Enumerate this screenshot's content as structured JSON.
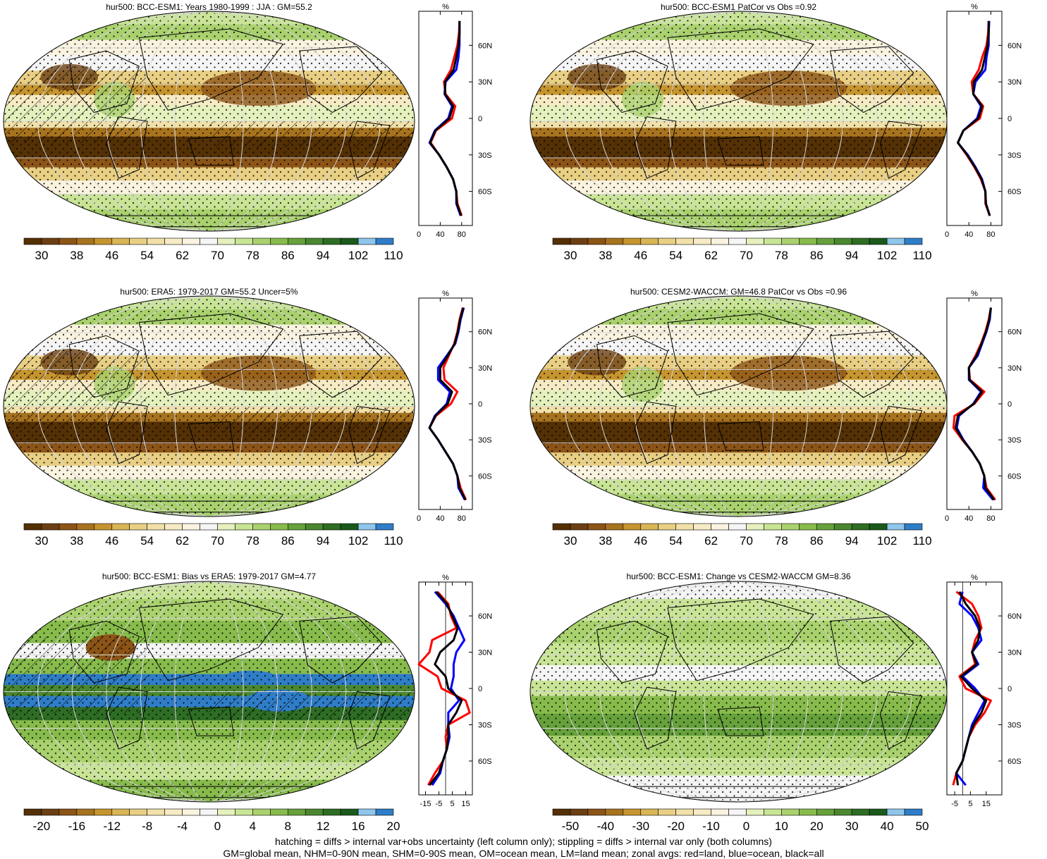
{
  "colors": {
    "landLine": "#ff0000",
    "oceanLine": "#0000ff",
    "allLine": "#000000"
  },
  "palettes": {
    "absolute": [
      "#543005",
      "#6b3f12",
      "#8c5416",
      "#a8731e",
      "#c6952f",
      "#d9b554",
      "#e8cf84",
      "#f1e0a8",
      "#f6ebc4",
      "#faf3df",
      "#f5f5f5",
      "#e4f1bd",
      "#c8e495",
      "#a9d16d",
      "#87bb4c",
      "#66a13b",
      "#4a872f",
      "#2e6d24",
      "#1a5a1c",
      "#8ec6ec",
      "#2f7dc8"
    ],
    "bias": [
      "#543005",
      "#6b3f12",
      "#8c5416",
      "#a8731e",
      "#c6952f",
      "#d9b554",
      "#e8cf84",
      "#f1e0a8",
      "#f6ebc4",
      "#faf3df",
      "#f5f5f5",
      "#e4f1bd",
      "#c8e495",
      "#a9d16d",
      "#87bb4c",
      "#66a13b",
      "#4a872f",
      "#2e6d24",
      "#1a5a1c",
      "#8ec6ec",
      "#2f7dc8"
    ]
  },
  "colorbars": {
    "absolute": [
      "30",
      "38",
      "46",
      "54",
      "62",
      "70",
      "78",
      "86",
      "94",
      "102",
      "110"
    ],
    "bias": [
      "-20",
      "-16",
      "-12",
      "-8",
      "-4",
      "0",
      "4",
      "8",
      "12",
      "16",
      "20"
    ],
    "change": [
      "-50",
      "-40",
      "-30",
      "-20",
      "-10",
      "0",
      "10",
      "20",
      "30",
      "40",
      "50"
    ]
  },
  "panels": [
    {
      "id": "p1",
      "title": "hur500: BCC-ESM1: Years 1980-1999 : JJA : GM=55.2",
      "palette": "absolute",
      "bar": "absolute",
      "hatch": true
    },
    {
      "id": "p2",
      "title": "hur500: BCC-ESM1 PatCor vs Obs =0.92",
      "palette": "absolute",
      "bar": "absolute",
      "hatch": false
    },
    {
      "id": "p3",
      "title": "hur500: ERA5: 1979-2017 GM=55.2 Uncer=5%",
      "palette": "absolute",
      "bar": "absolute",
      "hatch": true
    },
    {
      "id": "p4",
      "title": "hur500: CESM2-WACCM: GM=46.8 PatCor vs Obs =0.96",
      "palette": "absolute",
      "bar": "absolute",
      "hatch": false
    },
    {
      "id": "p5",
      "title": "hur500: BCC-ESM1: Bias vs ERA5: 1979-2017 GM=4.77",
      "palette": "bias",
      "bar": "bias",
      "hatch": true
    },
    {
      "id": "p6",
      "title": "hur500: BCC-ESM1: Change vs CESM2-WACCM GM=8.36",
      "palette": "bias",
      "bar": "change",
      "hatch": false
    }
  ],
  "zonal": {
    "unit": "%",
    "lat_labels": [
      "60N",
      "30N",
      "0",
      "30S",
      "60S"
    ],
    "absolute_xticks": [
      "0",
      "40",
      "80"
    ],
    "bias_xticks": [
      "-15",
      "-5",
      "5",
      "15"
    ],
    "change_xticks": [
      "-5",
      "5",
      "15"
    ]
  },
  "chart_data": [
    {
      "type": "line",
      "title": "hur500: BCC-ESM1: Years 1980-1999 : JJA : GM=55.2 (zonal mean)",
      "xlabel": "%",
      "xlim": [
        0,
        100
      ],
      "lat": [
        80,
        70,
        60,
        50,
        40,
        30,
        20,
        10,
        0,
        -10,
        -20,
        -30,
        -40,
        -50,
        -60,
        -70,
        -80
      ],
      "series": [
        {
          "name": "red=land",
          "values": [
            76,
            75,
            72,
            66,
            60,
            47,
            50,
            68,
            62,
            32,
            22,
            38,
            52,
            64,
            70,
            72,
            80
          ]
        },
        {
          "name": "blue=ocean",
          "values": [
            76,
            76,
            76,
            74,
            70,
            50,
            48,
            62,
            55,
            30,
            20,
            38,
            52,
            64,
            70,
            70,
            78
          ]
        },
        {
          "name": "black=all",
          "values": [
            76,
            76,
            74,
            70,
            65,
            49,
            49,
            64,
            57,
            31,
            21,
            38,
            52,
            64,
            70,
            71,
            79
          ]
        }
      ]
    },
    {
      "type": "line",
      "title": "hur500: BCC-ESM1 PatCor vs Obs =0.92 (zonal mean)",
      "xlabel": "%",
      "xlim": [
        0,
        100
      ],
      "lat": [
        80,
        70,
        60,
        50,
        40,
        30,
        20,
        10,
        0,
        -10,
        -20,
        -30,
        -40,
        -50,
        -60,
        -70,
        -80
      ],
      "series": [
        {
          "name": "red=land",
          "values": [
            76,
            75,
            72,
            64,
            58,
            45,
            48,
            66,
            60,
            30,
            20,
            36,
            50,
            62,
            70,
            70,
            78
          ]
        },
        {
          "name": "blue=ocean",
          "values": [
            77,
            76,
            76,
            72,
            70,
            52,
            48,
            62,
            55,
            30,
            20,
            38,
            52,
            64,
            70,
            71,
            78
          ]
        },
        {
          "name": "black=all",
          "values": [
            76,
            76,
            74,
            69,
            64,
            49,
            48,
            64,
            57,
            30,
            20,
            37,
            51,
            63,
            70,
            71,
            78
          ]
        }
      ]
    },
    {
      "type": "line",
      "title": "hur500: ERA5: 1979-2017 GM=55.2 Uncer=5% (zonal mean)",
      "xlabel": "%",
      "xlim": [
        0,
        100
      ],
      "lat": [
        80,
        70,
        60,
        50,
        40,
        30,
        20,
        10,
        0,
        -10,
        -20,
        -30,
        -40,
        -50,
        -60,
        -70,
        -80
      ],
      "series": [
        {
          "name": "red=land",
          "values": [
            82,
            76,
            72,
            66,
            56,
            46,
            48,
            72,
            60,
            32,
            20,
            36,
            50,
            64,
            72,
            78,
            88
          ]
        },
        {
          "name": "blue=ocean",
          "values": [
            84,
            78,
            74,
            68,
            52,
            36,
            36,
            58,
            52,
            30,
            20,
            36,
            50,
            64,
            72,
            74,
            86
          ]
        },
        {
          "name": "black=all",
          "values": [
            83,
            77,
            73,
            67,
            54,
            40,
            40,
            62,
            54,
            31,
            20,
            36,
            50,
            64,
            72,
            76,
            87
          ]
        }
      ]
    },
    {
      "type": "line",
      "title": "hur500: CESM2-WACCM: GM=46.8 PatCor vs Obs =0.96 (zonal mean)",
      "xlabel": "%",
      "xlim": [
        0,
        100
      ],
      "lat": [
        80,
        70,
        60,
        50,
        40,
        30,
        20,
        10,
        0,
        -10,
        -20,
        -30,
        -40,
        -50,
        -60,
        -70,
        -80
      ],
      "series": [
        {
          "name": "red=land",
          "values": [
            80,
            76,
            70,
            62,
            52,
            40,
            42,
            68,
            50,
            14,
            12,
            28,
            46,
            60,
            68,
            72,
            88
          ]
        },
        {
          "name": "blue=ocean",
          "values": [
            80,
            78,
            72,
            64,
            56,
            40,
            40,
            62,
            48,
            22,
            18,
            30,
            46,
            60,
            68,
            66,
            84
          ]
        },
        {
          "name": "black=all",
          "values": [
            80,
            77,
            71,
            63,
            54,
            40,
            41,
            64,
            49,
            20,
            16,
            29,
            46,
            60,
            68,
            70,
            86
          ]
        }
      ]
    },
    {
      "type": "line",
      "title": "hur500: BCC-ESM1: Bias vs ERA5: 1979-2017 GM=4.77 (zonal mean)",
      "xlabel": "%",
      "xlim": [
        -20,
        20
      ],
      "lat": [
        80,
        70,
        60,
        50,
        40,
        30,
        20,
        10,
        0,
        -10,
        -20,
        -30,
        -40,
        -50,
        -60,
        -70,
        -80
      ],
      "series": [
        {
          "name": "red=land",
          "values": [
            -6,
            2,
            4,
            8,
            -10,
            -12,
            -20,
            -6,
            -3,
            15,
            18,
            2,
            0,
            1,
            -2,
            -8,
            -13
          ]
        },
        {
          "name": "blue=ocean",
          "values": [
            -8,
            0,
            6,
            10,
            14,
            8,
            6,
            6,
            4,
            10,
            2,
            2,
            3,
            1,
            -2,
            -4,
            -10
          ]
        },
        {
          "name": "black=all",
          "values": [
            -7,
            1,
            5,
            9,
            6,
            -4,
            -8,
            0,
            2,
            12,
            8,
            2,
            2,
            1,
            -2,
            -5,
            -12
          ]
        }
      ]
    },
    {
      "type": "line",
      "title": "hur500: BCC-ESM1: Change vs CESM2-WACCM GM=8.36 (zonal mean)",
      "xlabel": "%",
      "xlim": [
        -10,
        25
      ],
      "lat": [
        80,
        70,
        60,
        50,
        40,
        30,
        20,
        10,
        0,
        -10,
        -20,
        -30,
        -40,
        -50,
        -60,
        -70,
        -80
      ],
      "series": [
        {
          "name": "red=land",
          "values": [
            -4,
            6,
            10,
            12,
            8,
            6,
            8,
            -2,
            2,
            18,
            14,
            8,
            4,
            2,
            0,
            -4,
            -6
          ]
        },
        {
          "name": "blue=ocean",
          "values": [
            0,
            -2,
            6,
            10,
            12,
            6,
            10,
            0,
            8,
            14,
            10,
            6,
            4,
            2,
            0,
            -4,
            2
          ]
        },
        {
          "name": "black=all",
          "values": [
            -2,
            2,
            8,
            11,
            10,
            6,
            9,
            -1,
            6,
            15,
            12,
            7,
            4,
            2,
            0,
            -4,
            -3
          ]
        }
      ]
    }
  ],
  "footer": {
    "line1": "hatching = diffs > internal var+obs uncertainty (left column only); stippling = diffs > internal var only (both columns)",
    "line2": "GM=global mean, NHM=0-90N mean, SHM=0-90S mean, OM=ocean mean, LM=land mean; zonal avgs: red=land, blue=ocean, black=all"
  }
}
